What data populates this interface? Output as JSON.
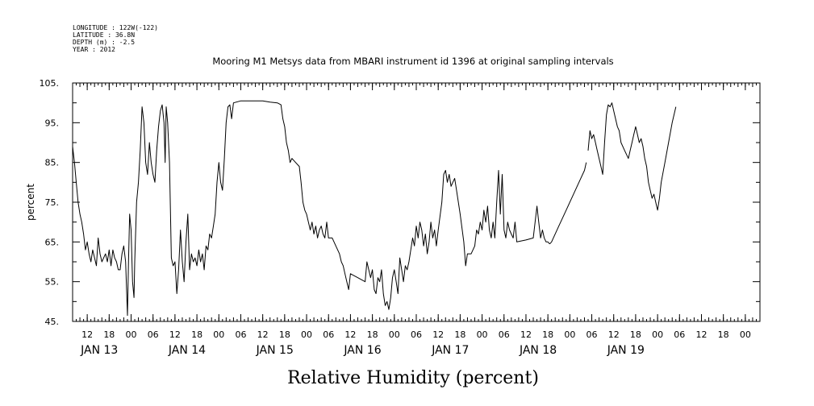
{
  "header": {
    "longitude": "LONGITUDE : 122W(-122)",
    "latitude": "LATITUDE : 36.8N",
    "depth": "DEPTH (m) : -2.5",
    "year": "YEAR : 2012"
  },
  "chart_data": {
    "type": "line",
    "title": "Mooring M1 Metsys data from MBARI instrument id 1396 at original sampling intervals",
    "xlabel": "Relative Humidity (percent)",
    "ylabel": "percent",
    "ylim": [
      45,
      105
    ],
    "yticks": [
      "45.",
      "55.",
      "65.",
      "75.",
      "85.",
      "95.",
      "105."
    ],
    "xlim_hours": [
      0,
      188
    ],
    "x_units": "hours from 2012-01-12 08:00",
    "hour_ticks": [
      {
        "h": 4,
        "label": "12"
      },
      {
        "h": 10,
        "label": "18"
      },
      {
        "h": 16,
        "label": "00"
      },
      {
        "h": 22,
        "label": "06"
      },
      {
        "h": 28,
        "label": "12"
      },
      {
        "h": 34,
        "label": "18"
      },
      {
        "h": 40,
        "label": "00"
      },
      {
        "h": 46,
        "label": "06"
      },
      {
        "h": 52,
        "label": "12"
      },
      {
        "h": 58,
        "label": "18"
      },
      {
        "h": 64,
        "label": "00"
      },
      {
        "h": 70,
        "label": "06"
      },
      {
        "h": 76,
        "label": "12"
      },
      {
        "h": 82,
        "label": "18"
      },
      {
        "h": 88,
        "label": "00"
      },
      {
        "h": 94,
        "label": "06"
      },
      {
        "h": 100,
        "label": "12"
      },
      {
        "h": 106,
        "label": "18"
      },
      {
        "h": 112,
        "label": "00"
      },
      {
        "h": 118,
        "label": "06"
      },
      {
        "h": 124,
        "label": "12"
      },
      {
        "h": 130,
        "label": "18"
      },
      {
        "h": 136,
        "label": "00"
      },
      {
        "h": 142,
        "label": "06"
      },
      {
        "h": 148,
        "label": "12"
      },
      {
        "h": 154,
        "label": "18"
      },
      {
        "h": 160,
        "label": "00"
      },
      {
        "h": 166,
        "label": "06"
      },
      {
        "h": 172,
        "label": "12"
      },
      {
        "h": 178,
        "label": "18"
      },
      {
        "h": 184,
        "label": "00"
      }
    ],
    "day_labels": [
      {
        "h": 4,
        "label": "JAN 13"
      },
      {
        "h": 28,
        "label": "JAN 14"
      },
      {
        "h": 52,
        "label": "JAN 15"
      },
      {
        "h": 76,
        "label": "JAN 16"
      },
      {
        "h": 100,
        "label": "JAN 17"
      },
      {
        "h": 124,
        "label": "JAN 18"
      },
      {
        "h": 148,
        "label": "JAN 19"
      }
    ],
    "segments": [
      [
        [
          0,
          89
        ],
        [
          0.5,
          85
        ],
        [
          1,
          80
        ],
        [
          1.5,
          75
        ],
        [
          2,
          72
        ],
        [
          2.5,
          70
        ],
        [
          3,
          67
        ],
        [
          3.5,
          63
        ],
        [
          4,
          65
        ],
        [
          4.5,
          62
        ],
        [
          5,
          60
        ],
        [
          5.5,
          63
        ],
        [
          6,
          61
        ],
        [
          6.5,
          59
        ],
        [
          7,
          66
        ],
        [
          7.5,
          62
        ],
        [
          8,
          60
        ],
        [
          8.5,
          61
        ],
        [
          9,
          62
        ],
        [
          9.5,
          60
        ],
        [
          10,
          63
        ],
        [
          10.5,
          59
        ],
        [
          11,
          63
        ],
        [
          11.5,
          61
        ],
        [
          12,
          60
        ],
        [
          12.5,
          58
        ],
        [
          13,
          58
        ],
        [
          13.5,
          62
        ],
        [
          14,
          64
        ],
        [
          14.5,
          60
        ],
        [
          15,
          46.5
        ],
        [
          15.3,
          60
        ],
        [
          15.6,
          72
        ],
        [
          16,
          68
        ],
        [
          16.4,
          55
        ],
        [
          16.8,
          51
        ],
        [
          17,
          60
        ],
        [
          17.5,
          75
        ],
        [
          18,
          80
        ],
        [
          18.5,
          88
        ],
        [
          19,
          99
        ],
        [
          19.5,
          95
        ],
        [
          20,
          85
        ],
        [
          20.5,
          82
        ],
        [
          21,
          90
        ],
        [
          21.5,
          85
        ],
        [
          22,
          82
        ],
        [
          22.5,
          80
        ],
        [
          23,
          88
        ],
        [
          23.5,
          94
        ],
        [
          24,
          98
        ],
        [
          24.5,
          99.5
        ],
        [
          25,
          95
        ],
        [
          25.3,
          85
        ],
        [
          25.6,
          99
        ],
        [
          26,
          95
        ],
        [
          26.5,
          85
        ],
        [
          27,
          61
        ],
        [
          27.5,
          59
        ],
        [
          28,
          60
        ],
        [
          28.5,
          52
        ],
        [
          29,
          58
        ],
        [
          29.5,
          68
        ],
        [
          30,
          60
        ],
        [
          30.5,
          55
        ],
        [
          31,
          65
        ],
        [
          31.5,
          72
        ],
        [
          32,
          58
        ],
        [
          32.5,
          62
        ],
        [
          33,
          60
        ],
        [
          33.5,
          61
        ],
        [
          34,
          59
        ],
        [
          34.5,
          63
        ],
        [
          35,
          60
        ],
        [
          35.5,
          62
        ],
        [
          36,
          58
        ],
        [
          36.5,
          64
        ],
        [
          37,
          63
        ],
        [
          37.5,
          67
        ],
        [
          38,
          66
        ],
        [
          38.5,
          69
        ],
        [
          39,
          72
        ],
        [
          39.5,
          80
        ],
        [
          40,
          85
        ],
        [
          40.5,
          80
        ],
        [
          41,
          78
        ],
        [
          41.5,
          86
        ],
        [
          42,
          95
        ],
        [
          42.5,
          99
        ],
        [
          43,
          99.5
        ],
        [
          43.5,
          96
        ],
        [
          44,
          100
        ],
        [
          46,
          100.5
        ],
        [
          52,
          100.5
        ],
        [
          54,
          100.2
        ],
        [
          56,
          100
        ],
        [
          57,
          99.5
        ],
        [
          57.5,
          96
        ],
        [
          58,
          94
        ],
        [
          58.5,
          90
        ],
        [
          59,
          88
        ],
        [
          59.5,
          85
        ],
        [
          60,
          86
        ],
        [
          61,
          85
        ],
        [
          62,
          84
        ],
        [
          62.5,
          80
        ],
        [
          63,
          75
        ],
        [
          63.5,
          73
        ],
        [
          64,
          72
        ],
        [
          64.5,
          70
        ],
        [
          65,
          68
        ],
        [
          65.5,
          70
        ],
        [
          66,
          67
        ],
        [
          66.5,
          69
        ],
        [
          67,
          66
        ],
        [
          67.5,
          68
        ],
        [
          68,
          69
        ],
        [
          68.5,
          67
        ],
        [
          69,
          66
        ],
        [
          69.5,
          70
        ],
        [
          70,
          66
        ],
        [
          71,
          66
        ],
        [
          72,
          64
        ],
        [
          73,
          62
        ],
        [
          73.5,
          60
        ],
        [
          74,
          59
        ],
        [
          74.5,
          57
        ],
        [
          75,
          55
        ],
        [
          75.5,
          53
        ],
        [
          76,
          57
        ],
        [
          78,
          56
        ],
        [
          80,
          55
        ],
        [
          80.5,
          60
        ],
        [
          81,
          58
        ],
        [
          81.5,
          56
        ],
        [
          82,
          58
        ],
        [
          82.5,
          53
        ],
        [
          83,
          52
        ],
        [
          83.5,
          56
        ],
        [
          84,
          55
        ],
        [
          84.5,
          58
        ],
        [
          85,
          52
        ],
        [
          85.5,
          49
        ],
        [
          86,
          50
        ],
        [
          86.5,
          48
        ],
        [
          87,
          51
        ],
        [
          87.5,
          56
        ],
        [
          88,
          58
        ],
        [
          88.5,
          55
        ],
        [
          89,
          52
        ],
        [
          89.5,
          61
        ],
        [
          90,
          58
        ],
        [
          90.5,
          55
        ],
        [
          91,
          59
        ],
        [
          91.5,
          58
        ],
        [
          92,
          60
        ],
        [
          92.5,
          63
        ],
        [
          93,
          66
        ],
        [
          93.5,
          64
        ],
        [
          94,
          69
        ],
        [
          94.5,
          66
        ],
        [
          95,
          70
        ],
        [
          95.5,
          68
        ],
        [
          96,
          64
        ],
        [
          96.5,
          67
        ],
        [
          97,
          62
        ],
        [
          97.5,
          65
        ],
        [
          98,
          70
        ],
        [
          98.5,
          66
        ],
        [
          99,
          68
        ],
        [
          99.5,
          64
        ],
        [
          100,
          68
        ],
        [
          101,
          75
        ],
        [
          101.5,
          82
        ],
        [
          102,
          83
        ],
        [
          102.5,
          80
        ],
        [
          103,
          82
        ],
        [
          103.5,
          79
        ],
        [
          104,
          80
        ],
        [
          104.5,
          81
        ],
        [
          105,
          78
        ],
        [
          106,
          72
        ],
        [
          107,
          65
        ],
        [
          107.5,
          59
        ],
        [
          108,
          62
        ],
        [
          109,
          62
        ],
        [
          110,
          64
        ],
        [
          110.5,
          68
        ],
        [
          111,
          67
        ],
        [
          111.5,
          70
        ],
        [
          112,
          68
        ],
        [
          112.5,
          73
        ],
        [
          113,
          70
        ],
        [
          113.5,
          74
        ],
        [
          114,
          68
        ],
        [
          114.5,
          66
        ],
        [
          115,
          70
        ],
        [
          115.5,
          66
        ],
        [
          116,
          75
        ],
        [
          116.5,
          83
        ],
        [
          117,
          72
        ],
        [
          117.5,
          82
        ],
        [
          118,
          68
        ],
        [
          118.5,
          66
        ],
        [
          119,
          70
        ],
        [
          119.5,
          68
        ],
        [
          120,
          67
        ],
        [
          120.5,
          66
        ],
        [
          121,
          70
        ],
        [
          121.5,
          65
        ],
        [
          124,
          65.5
        ],
        [
          126,
          66
        ],
        [
          126.5,
          70
        ],
        [
          127,
          74
        ],
        [
          127.5,
          70
        ],
        [
          128,
          66
        ],
        [
          128.5,
          68
        ],
        [
          129,
          66
        ],
        [
          129.5,
          65
        ],
        [
          130,
          65
        ],
        [
          130.5,
          64.5
        ]
      ],
      [
        [
          130.5,
          64.5
        ],
        [
          131,
          65
        ],
        [
          133,
          69
        ],
        [
          135,
          73
        ],
        [
          137,
          77
        ],
        [
          139,
          81
        ],
        [
          140,
          83
        ],
        [
          140.5,
          85
        ]
      ],
      [
        [
          141,
          88
        ],
        [
          141.5,
          93
        ],
        [
          142,
          91
        ],
        [
          142.5,
          92
        ],
        [
          143,
          90
        ],
        [
          143.5,
          88
        ],
        [
          144,
          86
        ],
        [
          144.5,
          84
        ],
        [
          145,
          82
        ],
        [
          145.5,
          90
        ],
        [
          146,
          97
        ],
        [
          146.5,
          99.5
        ],
        [
          147,
          99
        ],
        [
          147.5,
          100
        ],
        [
          148,
          98
        ],
        [
          148.5,
          96
        ],
        [
          149,
          94
        ],
        [
          149.5,
          93
        ],
        [
          150,
          90
        ],
        [
          151,
          88
        ],
        [
          152,
          86
        ],
        [
          152.5,
          88
        ],
        [
          153,
          90
        ],
        [
          153.5,
          92
        ],
        [
          154,
          94
        ],
        [
          154.5,
          92
        ],
        [
          155,
          90
        ],
        [
          155.5,
          91
        ],
        [
          156,
          89
        ],
        [
          156.5,
          86
        ],
        [
          157,
          84
        ],
        [
          157.5,
          80
        ],
        [
          158,
          78
        ],
        [
          158.5,
          76
        ],
        [
          159,
          77
        ],
        [
          159.5,
          75
        ],
        [
          160,
          73
        ],
        [
          160.5,
          76
        ],
        [
          161,
          80
        ],
        [
          162,
          85
        ],
        [
          163,
          90
        ],
        [
          164,
          95
        ],
        [
          165,
          99
        ]
      ]
    ]
  }
}
